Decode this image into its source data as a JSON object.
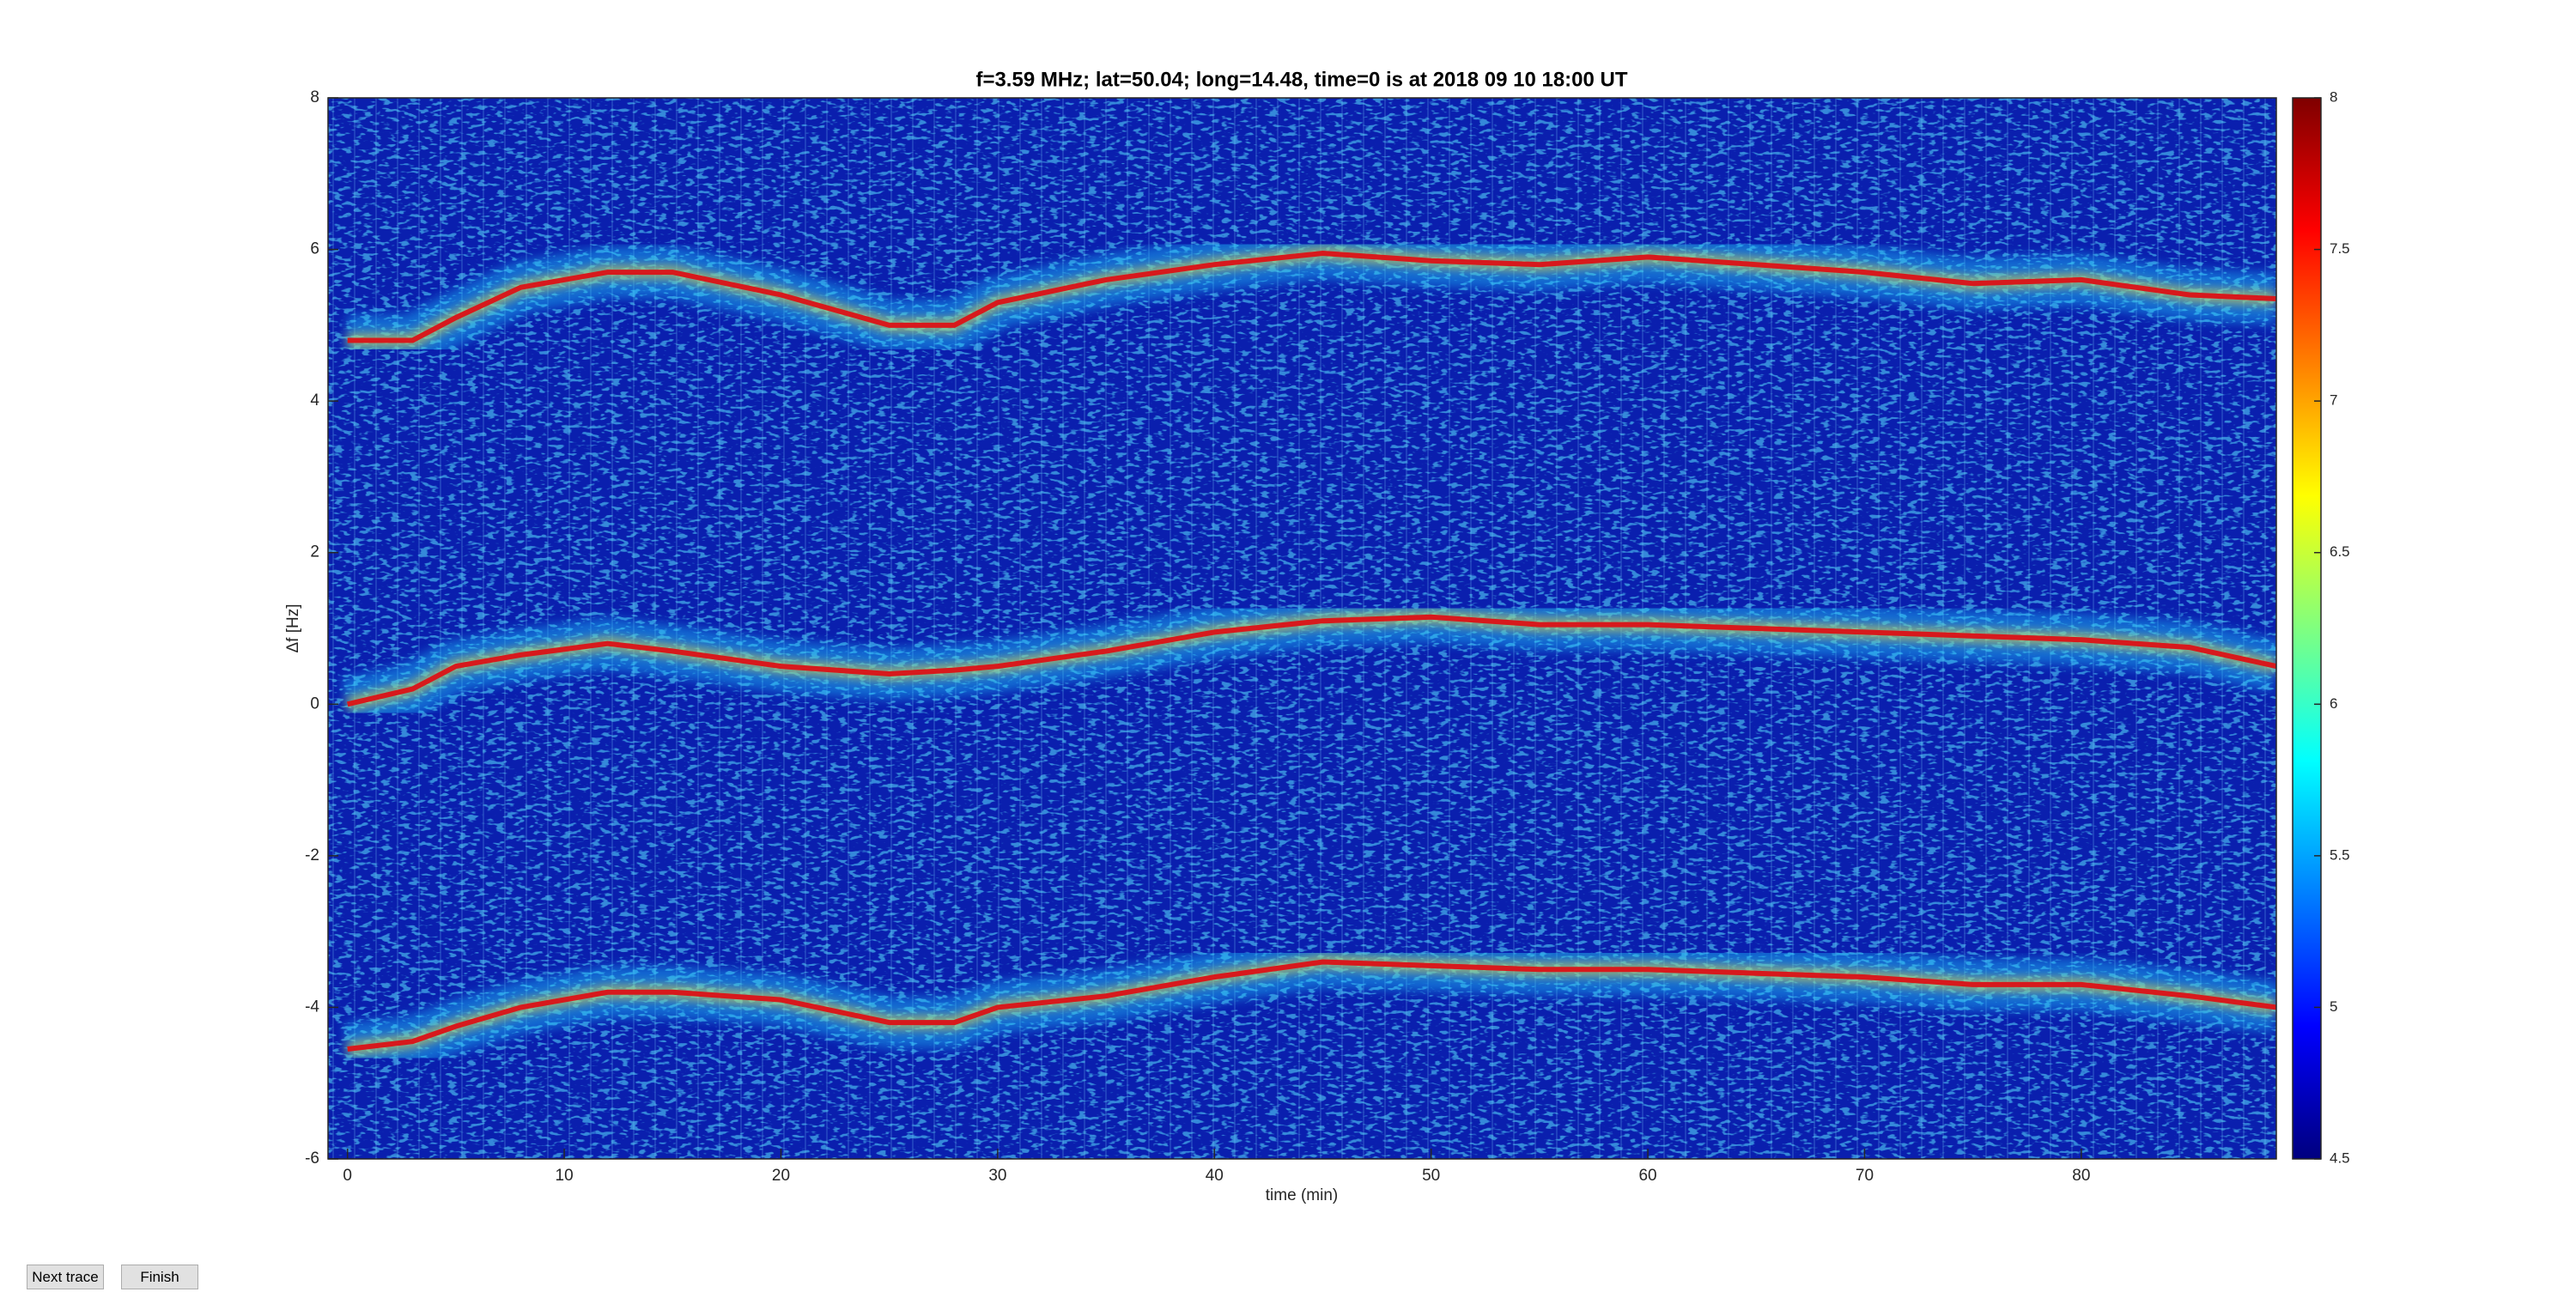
{
  "chart_data": {
    "type": "line",
    "title": "f=3.59 MHz;  lat=50.04; long=14.48, time=0 is at 2018 09 10 18:00 UT",
    "x_label": "time (min)",
    "y_label": "Δf [Hz]",
    "x": [
      0,
      3,
      5,
      8,
      12,
      15,
      20,
      25,
      28,
      30,
      35,
      40,
      45,
      50,
      55,
      60,
      65,
      70,
      75,
      80,
      85,
      89
    ],
    "series": [
      {
        "color": "#d7191c",
        "values": [
          4.8,
          4.8,
          5.1,
          5.5,
          5.7,
          5.7,
          5.4,
          5.0,
          5.0,
          5.3,
          5.6,
          5.8,
          5.95,
          5.85,
          5.8,
          5.9,
          5.8,
          5.7,
          5.55,
          5.6,
          5.4,
          5.35
        ]
      },
      {
        "color": "#d7191c",
        "values": [
          0.0,
          0.2,
          0.5,
          0.65,
          0.8,
          0.7,
          0.5,
          0.4,
          0.45,
          0.5,
          0.7,
          0.95,
          1.1,
          1.15,
          1.05,
          1.05,
          1.0,
          0.95,
          0.9,
          0.85,
          0.75,
          0.5
        ]
      },
      {
        "color": "#d7191c",
        "values": [
          -4.55,
          -4.45,
          -4.25,
          -4.0,
          -3.8,
          -3.8,
          -3.9,
          -4.2,
          -4.2,
          -4.0,
          -3.85,
          -3.6,
          -3.4,
          -3.45,
          -3.5,
          -3.5,
          -3.55,
          -3.6,
          -3.7,
          -3.7,
          -3.85,
          -4.0
        ]
      }
    ],
    "xlim": [
      -0.9,
      89
    ],
    "xticks": [
      0,
      10,
      20,
      30,
      40,
      50,
      60,
      70,
      80
    ],
    "ylim": [
      -6,
      8
    ],
    "yticks": [
      -6,
      -4,
      -2,
      0,
      2,
      4,
      6,
      8
    ],
    "colormap": "jet",
    "clim": [
      4.5,
      8
    ],
    "cticks": [
      4.5,
      5,
      5.5,
      6,
      6.5,
      7,
      7.5,
      8
    ]
  },
  "buttons": [
    "Next trace",
    "Finish"
  ]
}
